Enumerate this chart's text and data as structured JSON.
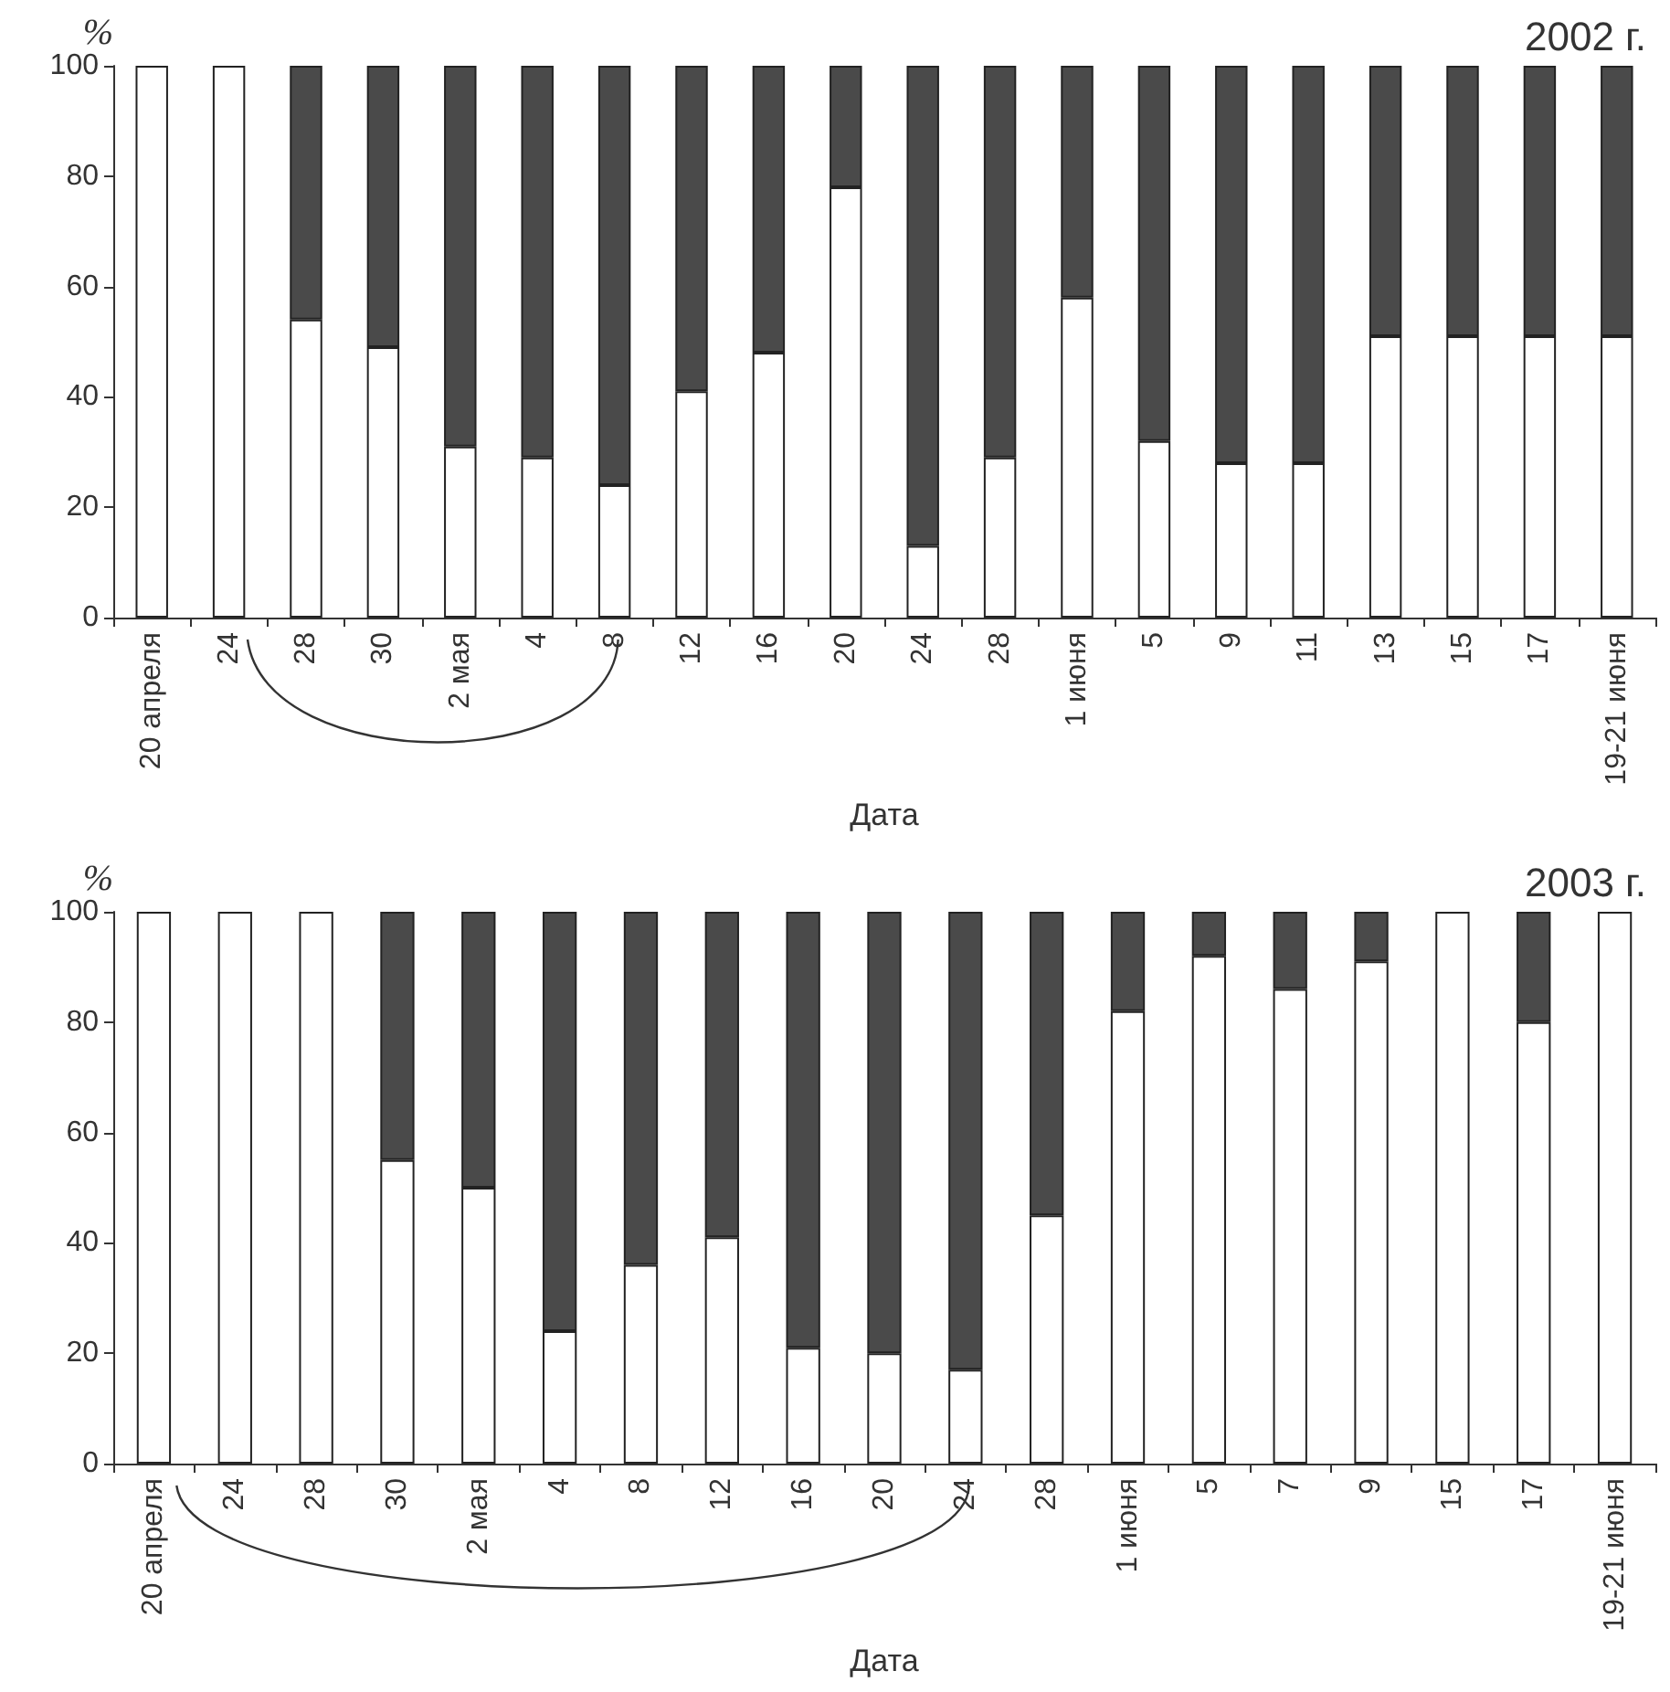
{
  "chart_data": [
    {
      "type": "bar",
      "title": "2002 г.",
      "xlabel": "Дата",
      "ylabel": "%",
      "stacked": true,
      "ylim": [
        0,
        100
      ],
      "yticks": [
        0,
        20,
        40,
        60,
        80,
        100
      ],
      "categories": [
        "20 апреля",
        "24",
        "28",
        "30",
        "2 мая",
        "4",
        "8",
        "12",
        "16",
        "20",
        "24",
        "28",
        "1 июня",
        "5",
        "9",
        "11",
        "13",
        "15",
        "17",
        "19-21 июня"
      ],
      "series": [
        {
          "color": "#ffffff",
          "values": [
            100,
            100,
            54,
            49,
            31,
            29,
            24,
            41,
            48,
            78,
            13,
            29,
            58,
            32,
            28,
            28,
            51,
            51,
            51,
            51
          ]
        },
        {
          "color": "#4a4a4a",
          "values": [
            0,
            0,
            46,
            51,
            69,
            71,
            76,
            59,
            52,
            22,
            87,
            71,
            42,
            68,
            72,
            72,
            49,
            49,
            49,
            49
          ]
        }
      ]
    },
    {
      "type": "bar",
      "title": "2003 г.",
      "xlabel": "Дата",
      "ylabel": "%",
      "stacked": true,
      "ylim": [
        0,
        100
      ],
      "yticks": [
        0,
        20,
        40,
        60,
        80,
        100
      ],
      "categories": [
        "20 апреля",
        "24",
        "28",
        "30",
        "2 мая",
        "4",
        "8",
        "12",
        "16",
        "20",
        "24",
        "28",
        "1 июня",
        "5",
        "7",
        "9",
        "15",
        "17",
        "19-21 июня"
      ],
      "series": [
        {
          "color": "#ffffff",
          "values": [
            100,
            100,
            100,
            55,
            50,
            24,
            36,
            41,
            21,
            20,
            17,
            45,
            82,
            92,
            86,
            91,
            100,
            80,
            100
          ]
        },
        {
          "color": "#4a4a4a",
          "values": [
            0,
            0,
            0,
            45,
            50,
            76,
            64,
            59,
            79,
            80,
            83,
            55,
            18,
            8,
            14,
            9,
            0,
            20,
            0
          ]
        }
      ]
    }
  ]
}
